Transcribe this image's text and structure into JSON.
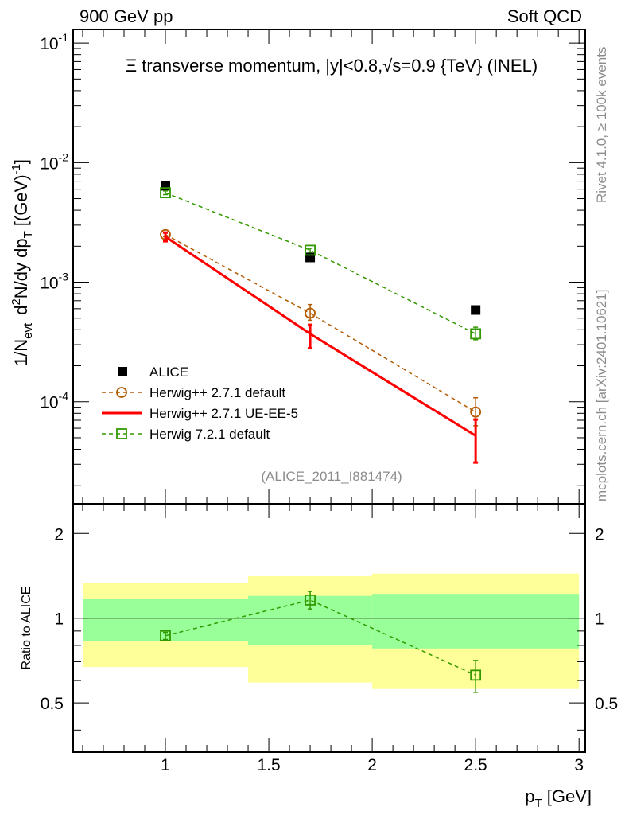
{
  "header": {
    "left": "900 GeV pp",
    "right": "Soft QCD"
  },
  "side_text": {
    "top": "Rivet 4.1.0, ≥ 100k events",
    "bottom": "mcplots.cern.ch [arXiv:2401.10621]"
  },
  "colors": {
    "alice": "#000000",
    "herwigpp_default": "#b35900",
    "ue_ee5": "#ff0000",
    "herwig7": "#339900",
    "band_yellow": "#ffff99",
    "band_green": "#99ff99"
  },
  "chart_data": [
    {
      "type": "scatter",
      "title": "Ξ transverse momentum, |y|<0.8,√s=0.9 {TeV} (INEL)",
      "analysis_tag": "(ALICE_2011_I881474)",
      "ylabel": {
        "a": "1/N",
        "a_sub": "evt",
        "b": "d",
        "b_sup": "2",
        "c": "N/dy dp",
        "c_sub": "T",
        "d": "[(GeV)",
        "d_sup": "-1",
        "e": "]"
      },
      "yscale": "log",
      "ylim": [
        1.4e-05,
        0.13
      ],
      "xlim": [
        0.554,
        3.03
      ],
      "yticks": [
        {
          "v": 0.1,
          "base": "10",
          "exp": "-1"
        },
        {
          "v": 0.01,
          "base": "10",
          "exp": "-2"
        },
        {
          "v": 0.001,
          "base": "10",
          "exp": "-3"
        },
        {
          "v": 0.0001,
          "base": "10",
          "exp": "-4"
        }
      ],
      "legend_position": "bottom-left",
      "series": [
        {
          "name": "ALICE",
          "key": "alice",
          "style": "square-filled",
          "x": [
            1.0,
            1.7,
            2.5
          ],
          "y": [
            0.0064,
            0.00161,
            0.000585
          ]
        },
        {
          "name": "Herwig++ 2.7.1 default",
          "key": "herwigpp_default",
          "style": "circle-dashed",
          "x": [
            1.0,
            1.7,
            2.5
          ],
          "y": [
            0.0025,
            0.00055,
            8.2e-05
          ],
          "ylo": [
            0.0024,
            0.00048,
            6.3e-05
          ],
          "yhi": [
            0.0026,
            0.00065,
            0.000108
          ]
        },
        {
          "name": "Herwig++ 2.7.1 UE-EE-5",
          "key": "ue_ee5",
          "style": "solid",
          "x": [
            1.0,
            1.7,
            2.5
          ],
          "y": [
            0.0024,
            0.00037,
            5.2e-05
          ],
          "ylo": [
            0.0022,
            0.00028,
            3.1e-05
          ],
          "yhi": [
            0.0026,
            0.00044,
            7.1e-05
          ]
        },
        {
          "name": "Herwig 7.2.1 default",
          "key": "herwig7",
          "style": "square-open-dashed",
          "x": [
            1.0,
            1.7,
            2.5
          ],
          "y": [
            0.0056,
            0.00185,
            0.00037
          ],
          "ylo": [
            0.0054,
            0.00178,
            0.00033
          ],
          "yhi": [
            0.0058,
            0.00192,
            0.00042
          ]
        }
      ]
    },
    {
      "type": "scatter",
      "ylabel": "Ratio to ALICE",
      "xlabel": {
        "a": "p",
        "a_sub": "T",
        "b": " [GeV]"
      },
      "yscale": "log",
      "ylim": [
        0.334,
        2.55
      ],
      "xlim": [
        0.554,
        3.03
      ],
      "yticks": [
        {
          "v": 0.5,
          "label": "0.5"
        },
        {
          "v": 1,
          "label": "1"
        },
        {
          "v": 2,
          "label": "2"
        }
      ],
      "xticks": [
        {
          "v": 1,
          "label": "1"
        },
        {
          "v": 1.5,
          "label": "1.5"
        },
        {
          "v": 2,
          "label": "2"
        },
        {
          "v": 2.5,
          "label": "2.5"
        },
        {
          "v": 3,
          "label": "3"
        }
      ],
      "bands": [
        {
          "x0": 0.6,
          "x1": 1.4,
          "yellow": [
            0.67,
            1.33
          ],
          "green": [
            0.83,
            1.17
          ]
        },
        {
          "x0": 1.4,
          "x1": 2.0,
          "yellow": [
            0.59,
            1.41
          ],
          "green": [
            0.8,
            1.2
          ]
        },
        {
          "x0": 2.0,
          "x1": 3.0,
          "yellow": [
            0.56,
            1.44
          ],
          "green": [
            0.78,
            1.22
          ]
        }
      ],
      "series": [
        {
          "name": "Herwig 7.2.1 default",
          "key": "herwig7",
          "x": [
            1.0,
            1.7,
            2.5
          ],
          "y": [
            0.866,
            1.16,
            0.627
          ],
          "ylo": [
            0.84,
            1.078,
            0.545
          ],
          "yhi": [
            0.89,
            1.245,
            0.707
          ]
        }
      ]
    }
  ]
}
